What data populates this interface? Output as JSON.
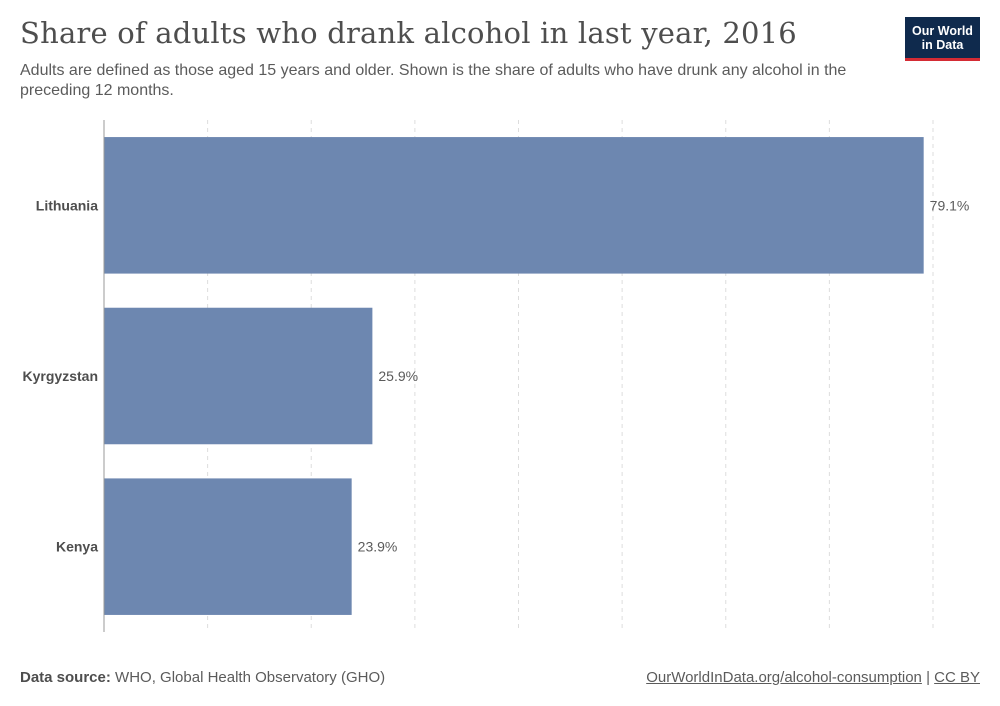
{
  "header": {
    "title": "Share of adults who drank alcohol in last year, 2016",
    "subtitle": "Adults are defined as those aged 15 years and older. Shown is the share of adults who have drunk any alcohol in the preceding 12 months.",
    "logo_line1": "Our World",
    "logo_line2": "in Data"
  },
  "footer": {
    "source_label": "Data source:",
    "source_text": "WHO, Global Health Observatory (GHO)",
    "link_text": "OurWorldInData.org/alcohol-consumption",
    "separator": "|",
    "license_text": "CC BY"
  },
  "colors": {
    "bar": "#6d87b0",
    "grid": "#dddddd",
    "axis": "#999999",
    "logo_bg": "#0f2a4d",
    "logo_accent": "#d42b34"
  },
  "chart_data": {
    "type": "bar",
    "orientation": "horizontal",
    "categories": [
      "Lithuania",
      "Kyrgyzstan",
      "Kenya"
    ],
    "values": [
      79.1,
      25.9,
      23.9
    ],
    "value_labels": [
      "79.1%",
      "25.9%",
      "23.9%"
    ],
    "unit": "%",
    "xlim": [
      0,
      80
    ],
    "grid": "vertical dashed",
    "legend": "none"
  }
}
